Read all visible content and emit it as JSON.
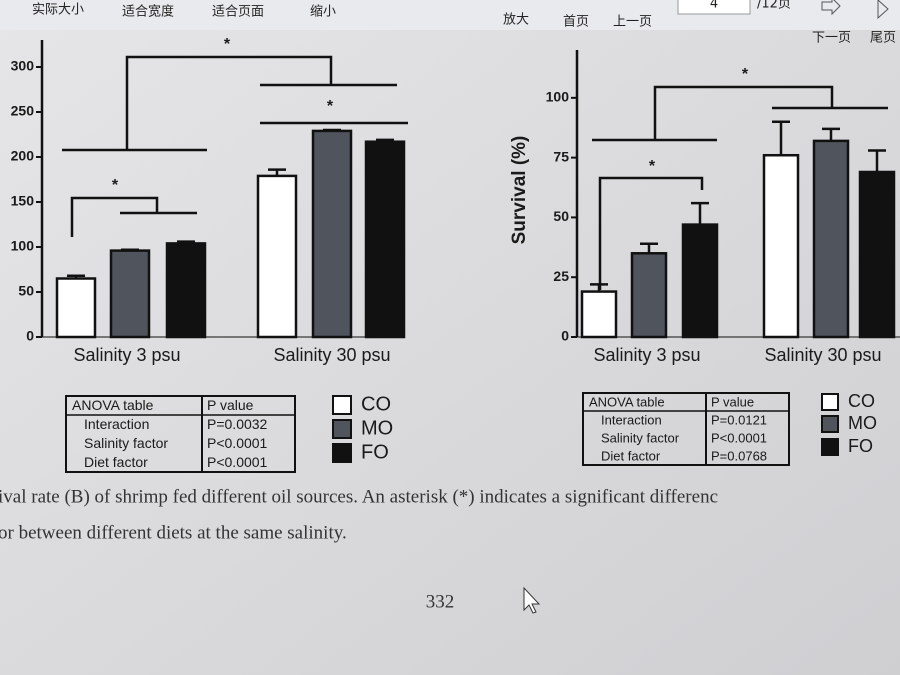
{
  "toolbar": {
    "buttons": [
      "实际大小",
      "适合宽度",
      "适合页面",
      "缩小",
      "放大",
      "首页",
      "上一页",
      "下一页",
      "尾页"
    ],
    "page_input": "4",
    "page_total": "/12页"
  },
  "chart_data": [
    {
      "type": "bar",
      "categories": [
        "Salinity 3 psu",
        "Salinity 30 psu"
      ],
      "series": [
        {
          "name": "CO",
          "color": "#ffffff",
          "values": [
            65,
            179
          ],
          "errors": [
            3,
            7
          ]
        },
        {
          "name": "MO",
          "color": "#50545c",
          "values": [
            96,
            229
          ],
          "errors": [
            1,
            1
          ]
        },
        {
          "name": "FO",
          "color": "#111111",
          "values": [
            104,
            217
          ],
          "errors": [
            2,
            2
          ]
        }
      ],
      "ylim": [
        0,
        330
      ],
      "yticks": [
        0,
        50,
        100,
        150,
        200,
        250,
        300
      ],
      "annotations": [
        "*",
        "*",
        "*"
      ],
      "anova": {
        "header": [
          "ANOVA table",
          "P value"
        ],
        "rows": [
          [
            "Interaction",
            "P=0.0032"
          ],
          [
            "Salinity factor",
            "P<0.0001"
          ],
          [
            "Diet factor",
            "P<0.0001"
          ]
        ]
      }
    },
    {
      "type": "bar",
      "ylabel": "Survival (%)",
      "categories": [
        "Salinity 3 psu",
        "Salinity 30 psu"
      ],
      "series": [
        {
          "name": "CO",
          "color": "#ffffff",
          "values": [
            19,
            76
          ],
          "errors": [
            3,
            14
          ]
        },
        {
          "name": "MO",
          "color": "#50545c",
          "values": [
            35,
            82
          ],
          "errors": [
            4,
            5
          ]
        },
        {
          "name": "FO",
          "color": "#111111",
          "values": [
            47,
            69
          ],
          "errors": [
            9,
            9
          ]
        }
      ],
      "ylim": [
        0,
        120
      ],
      "yticks": [
        0,
        25,
        50,
        75,
        100
      ],
      "annotations": [
        "*",
        "*"
      ],
      "anova": {
        "header": [
          "ANOVA table",
          "P value"
        ],
        "rows": [
          [
            "Interaction",
            "P=0.0121"
          ],
          [
            "Salinity factor",
            "P<0.0001"
          ],
          [
            "Diet factor",
            "P=0.0768"
          ]
        ]
      }
    }
  ],
  "caption": [
    "ival rate (B) of shrimp fed different oil sources. An asterisk (*) indicates a significant differenc",
    "or between different diets at the same salinity."
  ],
  "page_number": "332"
}
